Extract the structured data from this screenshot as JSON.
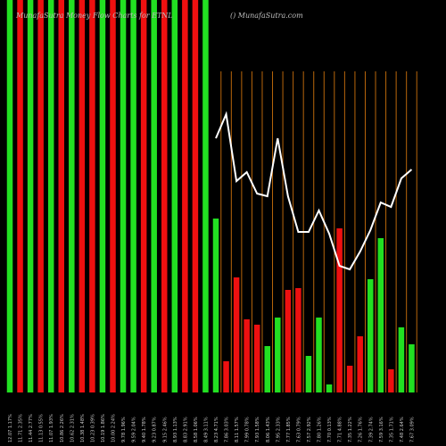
{
  "chart_data": {
    "type": "bar",
    "title": "MunafaSutra Money Flow Charts for ETNL",
    "subtitle": "() MunafaSutra.com",
    "categories": [
      "12.07 1.17%",
      "11.71 2.35%",
      "11.44 2.77%",
      "11.13 0.55%",
      "11.07 1.93%",
      "10.86 2.26%",
      "10.62 2.31%",
      "10.38 1.48%",
      "10.23 0.39%",
      "10.19 1.86%",
      "10.00 2.24%",
      "9.78 1.96%",
      "9.59 2.04%",
      "9.40 1.78%",
      "9.23 0.87%",
      "9.15 2.46%",
      "8.93 1.13%",
      "8.83 2.91%",
      "8.58 1.06%",
      "8.49 3.11%",
      "8.23 4.71%",
      "7.86 3.03%",
      "8.11 1.57%",
      "7.99 0.78%",
      "7.93 1.58%",
      "8.06 1.43%",
      "7.95 2.33%",
      "7.77 1.85%",
      "7.63 0.79%",
      "7.57 2.92%",
      "7.80 1.26%",
      "7.70 0.13%",
      "7.71 4.88%",
      "7.35 1.22%",
      "7.26 1.76%",
      "7.39 2.74%",
      "7.59 3.16%",
      "7.35 1.71%",
      "7.48 2.64%",
      "7.67 3.09%"
    ],
    "values": [
      440,
      440,
      440,
      440,
      440,
      440,
      440,
      440,
      440,
      440,
      440,
      440,
      440,
      440,
      440,
      440,
      440,
      440,
      440,
      440,
      195,
      35,
      129,
      82,
      76,
      52,
      84,
      115,
      117,
      41,
      84,
      9,
      184,
      30,
      63,
      127,
      173,
      26,
      73,
      54
    ],
    "colors": [
      "#22e022",
      "#ee1010",
      "#22e022",
      "#ee1010",
      "#22e022",
      "#ee1010",
      "#22e022",
      "#ee1010",
      "#ee1010",
      "#22e022",
      "#ee1010",
      "#22e022",
      "#22e022",
      "#ee1010",
      "#22e022",
      "#ee1010",
      "#22e022",
      "#ee1010",
      "#ee1010",
      "#22e022",
      "#22e022",
      "#ee1010",
      "#ee1010",
      "#ee1010",
      "#ee1010",
      "#22e022",
      "#22e022",
      "#ee1010",
      "#ee1010",
      "#22e022",
      "#22e022",
      "#22e022",
      "#ee1010",
      "#ee1010",
      "#ee1010",
      "#22e022",
      "#22e022",
      "#ee1010",
      "#22e022",
      "#22e022"
    ],
    "line": {
      "color": "#ffffff",
      "values": [
        null,
        null,
        null,
        null,
        null,
        null,
        null,
        null,
        null,
        null,
        null,
        null,
        null,
        null,
        null,
        null,
        null,
        null,
        null,
        null,
        285,
        312,
        237,
        247,
        223,
        220,
        285,
        220,
        180,
        180,
        204,
        178,
        142,
        138,
        158,
        182,
        213,
        208,
        240,
        250
      ]
    },
    "ylim": [
      0,
      440
    ]
  }
}
